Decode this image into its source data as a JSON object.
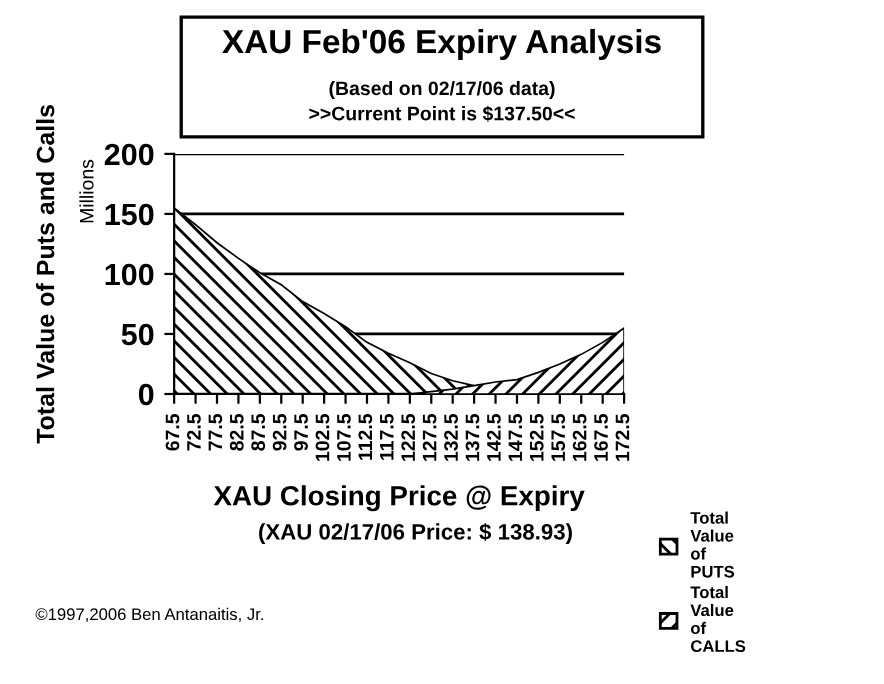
{
  "chart_data": {
    "type": "area",
    "title": "XAU Feb'06 Expiry Analysis",
    "subtitle": "(Based on 02/17/06 data)\n>>Current Point is $137.50<<",
    "xlabel": "XAU Closing Price @ Expiry",
    "ylabel": "Total Value of Puts and Calls",
    "annotations": [
      "Millions",
      "(XAU 02/17/06 Price: $ 138.93)",
      "©1997,2006 Ben Antanaitis, Jr."
    ],
    "categories": [
      "67.5",
      "72.5",
      "77.5",
      "82.5",
      "87.5",
      "92.5",
      "97.5",
      "102.5",
      "107.5",
      "112.5",
      "117.5",
      "122.5",
      "127.5",
      "132.5",
      "137.5",
      "142.5",
      "147.5",
      "152.5",
      "157.5",
      "162.5",
      "167.5",
      "172.5"
    ],
    "series": [
      {
        "name": "Total Value of PUTS",
        "color": "#000000",
        "values": [
          155,
          141,
          126,
          113,
          101,
          91,
          77,
          67,
          56,
          43,
          34,
          26,
          17,
          11,
          7,
          null,
          null,
          null,
          null,
          null,
          null,
          null
        ]
      },
      {
        "name": "Total Value of CALLS",
        "color": "#000000",
        "values": [
          0,
          0,
          0,
          0,
          0,
          0,
          0,
          0,
          0,
          0,
          0,
          0,
          2,
          4,
          7,
          10,
          12,
          18,
          25,
          33,
          43,
          55
        ]
      }
    ],
    "ylim": [
      0,
      200
    ],
    "yticks": [
      0,
      50,
      100,
      150,
      200
    ],
    "grid": "y",
    "legend": "bottom right"
  }
}
